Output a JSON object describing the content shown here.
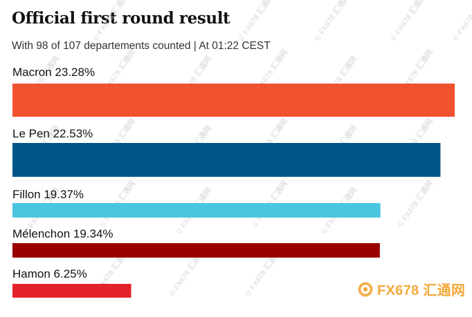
{
  "header": {
    "title": "Official first round result",
    "subtitle": "With 98 of 107 departements counted | At 01:22 CEST"
  },
  "watermark": {
    "text": "© FX678 汇通网",
    "logo_text": "FX678 汇通网",
    "logo_icon": "fx678-logo-icon"
  },
  "chart_data": {
    "type": "bar",
    "orientation": "horizontal",
    "title": "Official first round result",
    "subtitle": "With 98 of 107 departements counted | At 01:22 CEST",
    "categories": [
      "Macron",
      "Le Pen",
      "Fillon",
      "Mélenchon",
      "Hamon"
    ],
    "values": [
      23.28,
      22.53,
      19.37,
      19.34,
      6.25
    ],
    "labels": [
      "Macron 23.28%",
      "Le Pen 22.53%",
      "Fillon 19.37%",
      "Mélenchon 19.34%",
      "Hamon 6.25%"
    ],
    "colors": [
      "#f0512f",
      "#005689",
      "#4bc6df",
      "#990000",
      "#e4222a"
    ],
    "unit": "%",
    "xlim": [
      0,
      23.28
    ],
    "grid": false,
    "legend": "none"
  }
}
